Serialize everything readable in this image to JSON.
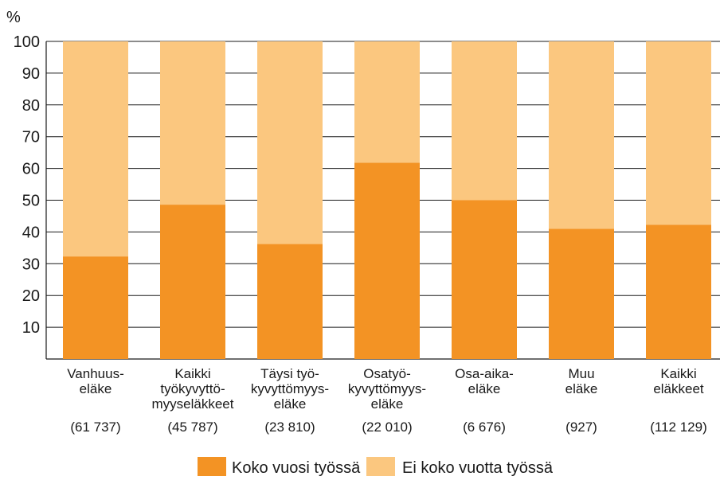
{
  "chart_data": {
    "type": "bar",
    "stacked": true,
    "ylabel": "%",
    "ylim": [
      0,
      100
    ],
    "yticks": [
      "10",
      "20",
      "30",
      "40",
      "50",
      "60",
      "70",
      "80",
      "90",
      "100"
    ],
    "grid": true,
    "legend_position": "bottom",
    "categories": [
      {
        "lines": [
          "Vanhuus-",
          "eläke"
        ],
        "count": "(61 737)"
      },
      {
        "lines": [
          "Kaikki",
          "työkyvyttö-",
          "myyseläkkeet"
        ],
        "count": "(45 787)"
      },
      {
        "lines": [
          "Täysi työ-",
          "kyvyttömyys-",
          "eläke"
        ],
        "count": "(23 810)"
      },
      {
        "lines": [
          "Osatyö-",
          "kyvyttömyys-",
          "eläke"
        ],
        "count": "(22 010)"
      },
      {
        "lines": [
          "Osa-aika-",
          "eläke"
        ],
        "count": "(6 676)"
      },
      {
        "lines": [
          "Muu",
          "eläke"
        ],
        "count": "(927)"
      },
      {
        "lines": [
          "Kaikki",
          "eläkkeet"
        ],
        "count": "(112 129)"
      }
    ],
    "series": [
      {
        "name": "Koko vuosi työssä",
        "color": "#f39324",
        "values": [
          32.3,
          48.6,
          36.2,
          61.8,
          50.0,
          41.0,
          42.3
        ]
      },
      {
        "name": "Ei koko vuotta työssä",
        "color": "#fbc77f",
        "values": [
          67.7,
          51.4,
          63.8,
          38.2,
          50.0,
          59.0,
          57.7
        ]
      }
    ]
  }
}
